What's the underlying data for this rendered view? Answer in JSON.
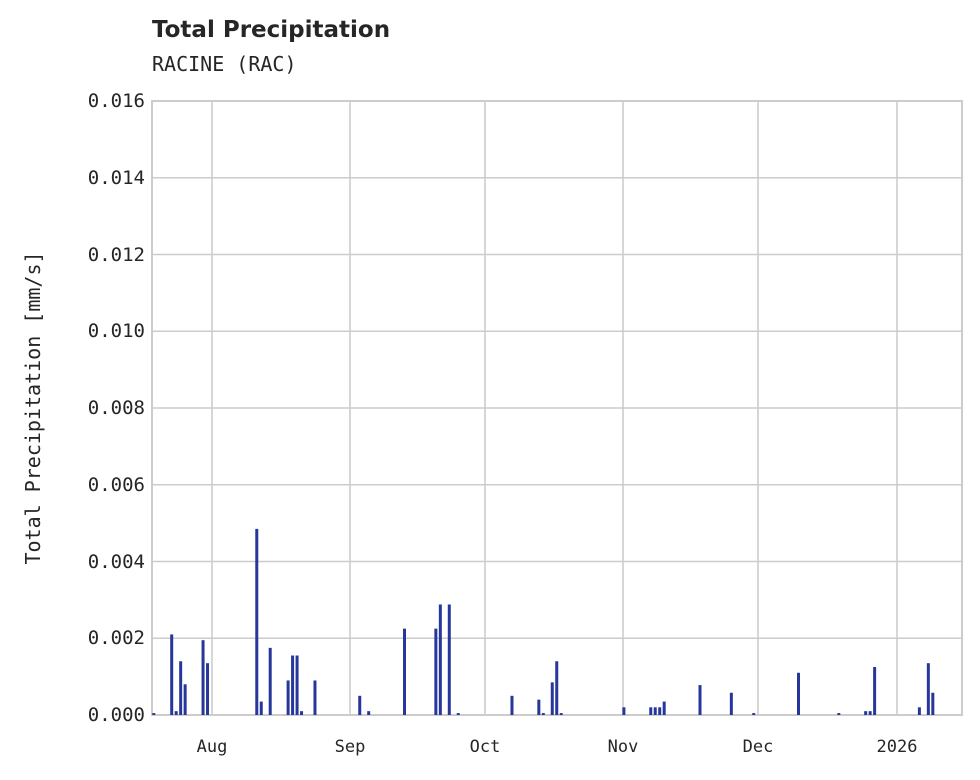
{
  "chart_data": {
    "type": "bar",
    "title": "Total Precipitation",
    "subtitle": "RACINE (RAC)",
    "xlabel": "",
    "ylabel": "Total Precipitation [mm/s]",
    "ylim": [
      0,
      0.016
    ],
    "yticks": [
      "0.000",
      "0.002",
      "0.004",
      "0.006",
      "0.008",
      "0.010",
      "0.012",
      "0.014",
      "0.016"
    ],
    "xticks": [
      "Aug",
      "Sep",
      "Oct",
      "Nov",
      "Dec",
      "2026"
    ],
    "grid": true,
    "color": "#27369a",
    "x": [
      "Jul 19",
      "Jul 23",
      "Jul 24",
      "Jul 25",
      "Jul 26",
      "Jul 30",
      "Jul 31",
      "Aug 11",
      "Aug 12",
      "Aug 14",
      "Aug 18",
      "Aug 19",
      "Aug 20",
      "Aug 21",
      "Aug 24",
      "Sep 3",
      "Sep 5",
      "Sep 13",
      "Sep 20",
      "Sep 21",
      "Sep 23",
      "Sep 25",
      "Oct 7",
      "Oct 13",
      "Oct 14",
      "Oct 16",
      "Oct 17",
      "Oct 18",
      "Nov 1",
      "Nov 7",
      "Nov 8",
      "Nov 9",
      "Nov 10",
      "Nov 18",
      "Nov 25",
      "Nov 30",
      "Dec 10",
      "Dec 19",
      "Dec 25",
      "Dec 26",
      "Dec 27",
      "Jan 6",
      "Jan 8",
      "Jan 9"
    ],
    "values": [
      5e-05,
      0.0021,
      0.0001,
      0.0014,
      0.0008,
      0.00195,
      0.00135,
      0.00485,
      0.00035,
      0.00175,
      0.0009,
      0.00155,
      0.00155,
      0.0001,
      0.0009,
      0.0005,
      0.0001,
      0.00225,
      0.00225,
      0.00288,
      0.00288,
      5e-05,
      0.0005,
      0.0004,
      5e-05,
      0.00085,
      0.0014,
      5e-05,
      0.0002,
      0.0002,
      0.0002,
      0.0002,
      0.00035,
      0.00078,
      0.00058,
      5e-05,
      0.0011,
      5e-05,
      0.0001,
      0.0001,
      0.00125,
      0.0002,
      0.00135,
      0.00058
    ]
  }
}
